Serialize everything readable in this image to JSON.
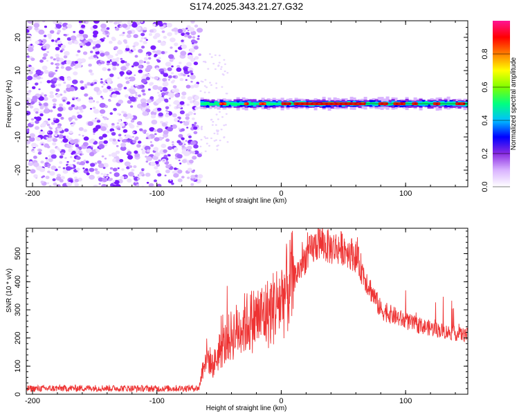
{
  "title": "S174.2025.343.21.27.G32",
  "chart_data": [
    {
      "type": "heatmap",
      "xlabel": "Height of straight line (km)",
      "ylabel": "Frequency (Hz)",
      "xlim": [
        -205,
        150
      ],
      "ylim": [
        -25,
        25
      ],
      "xticks": [
        -200,
        -100,
        0,
        100
      ],
      "xtick_labels": [
        "-200",
        "-100",
        "0",
        "100"
      ],
      "yticks": [
        -20,
        -10,
        0,
        10,
        20
      ],
      "ytick_labels": [
        "-20",
        "-10",
        "0",
        "10",
        "20"
      ],
      "noise_region_x": [
        -205,
        -65
      ],
      "signal_band_center_hz": 0,
      "colorbar": {
        "label": "Normalized spectral amplitude",
        "range": [
          0,
          1
        ],
        "ticks": [
          0.0,
          0.2,
          0.4,
          0.6,
          0.8
        ],
        "tick_labels": [
          "0.0",
          "0.2",
          "0.4",
          "0.6",
          "0.8"
        ],
        "colors": [
          "#ffffff",
          "#d9b3ff",
          "#8a2be2",
          "#0000ff",
          "#00bfff",
          "#00ff80",
          "#7fff00",
          "#ffff00",
          "#ff8000",
          "#ff0000",
          "#ff1493"
        ]
      }
    },
    {
      "type": "line",
      "xlabel": "Height of straight line (km)",
      "ylabel": "SNR (10 * v/v)",
      "xlim": [
        -205,
        150
      ],
      "ylim": [
        0,
        590
      ],
      "xticks": [
        -200,
        -100,
        0,
        100
      ],
      "xtick_labels": [
        "-200",
        "-100",
        "0",
        "100"
      ],
      "yticks": [
        0,
        100,
        200,
        300,
        400,
        500
      ],
      "ytick_labels": [
        "0",
        "100",
        "200",
        "300",
        "400",
        "500"
      ],
      "color": "#ee3333",
      "trend_x": [
        -205,
        -150,
        -100,
        -66,
        -62,
        -60,
        -55,
        -50,
        -40,
        -30,
        -20,
        -10,
        0,
        10,
        20,
        30,
        40,
        50,
        60,
        70,
        80,
        90,
        100,
        110,
        120,
        130,
        140,
        150
      ],
      "trend_y": [
        20,
        22,
        20,
        22,
        120,
        140,
        100,
        150,
        210,
        250,
        270,
        290,
        340,
        410,
        490,
        540,
        520,
        520,
        490,
        390,
        300,
        280,
        260,
        245,
        235,
        225,
        215,
        210
      ]
    }
  ]
}
